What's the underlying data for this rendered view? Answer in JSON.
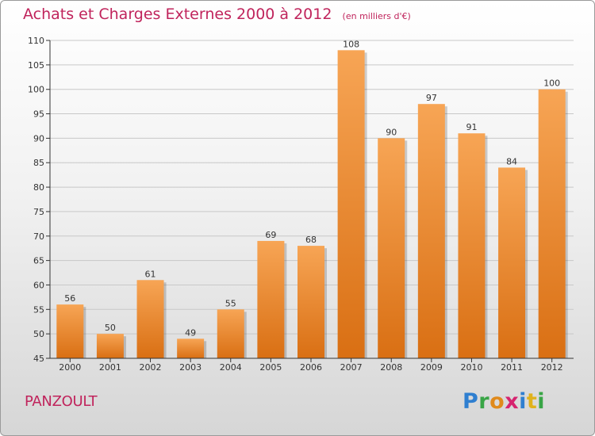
{
  "header": {
    "title": "Achats et Charges Externes 2000 à 2012",
    "unit_note": "(en milliers d'€)"
  },
  "footer": {
    "commune": "PANZOULT",
    "logo_letters": [
      {
        "char": "P",
        "color": "#2f7fd0"
      },
      {
        "char": "r",
        "color": "#39a546"
      },
      {
        "char": "o",
        "color": "#e08a1c"
      },
      {
        "char": "x",
        "color": "#d6246f"
      },
      {
        "char": "i",
        "color": "#2f7fd0"
      },
      {
        "char": "t",
        "color": "#e0b21c"
      },
      {
        "char": "i",
        "color": "#39a546"
      }
    ]
  },
  "colors": {
    "bar_light": "#f7a555",
    "bar_dark": "#d96f13",
    "axis": "#333333",
    "grid": "#c8c8c8",
    "title": "#c0245c"
  },
  "chart_data": {
    "type": "bar",
    "categories": [
      "2000",
      "2001",
      "2002",
      "2003",
      "2004",
      "2005",
      "2006",
      "2007",
      "2008",
      "2009",
      "2010",
      "2011",
      "2012"
    ],
    "values": [
      56,
      50,
      61,
      49,
      55,
      69,
      68,
      108,
      90,
      97,
      91,
      84,
      100
    ],
    "ylim": [
      45,
      110
    ],
    "yticks": [
      45,
      50,
      55,
      60,
      65,
      70,
      75,
      80,
      85,
      90,
      95,
      100,
      105,
      110
    ],
    "grid": true,
    "data_labels": true
  }
}
